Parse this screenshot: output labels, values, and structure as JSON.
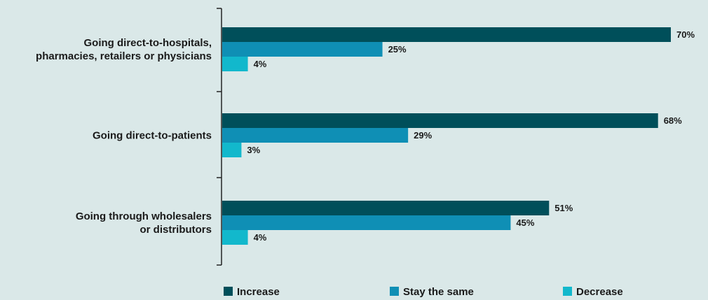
{
  "chart_data": {
    "type": "bar",
    "orientation": "horizontal",
    "categories": [
      [
        "Going direct-to-hospitals,",
        "pharmacies, retailers or physicians"
      ],
      [
        "Going direct-to-patients"
      ],
      [
        "Going through wholesalers",
        "or distributors"
      ]
    ],
    "series": [
      {
        "name": "Increase",
        "values": [
          70,
          68,
          51
        ],
        "labels": [
          "70%",
          "68%",
          "51%"
        ],
        "color": "#004f5a"
      },
      {
        "name": "Stay the same",
        "values": [
          25,
          29,
          45
        ],
        "labels": [
          "25%",
          "29%",
          "45%"
        ],
        "color": "#0f8fb5"
      },
      {
        "name": "Decrease",
        "values": [
          4,
          3,
          4
        ],
        "labels": [
          "4%",
          "3%",
          "4%"
        ],
        "color": "#12b8cc"
      }
    ],
    "xlim": [
      0,
      70
    ],
    "grid": false,
    "legend_position": "bottom"
  }
}
